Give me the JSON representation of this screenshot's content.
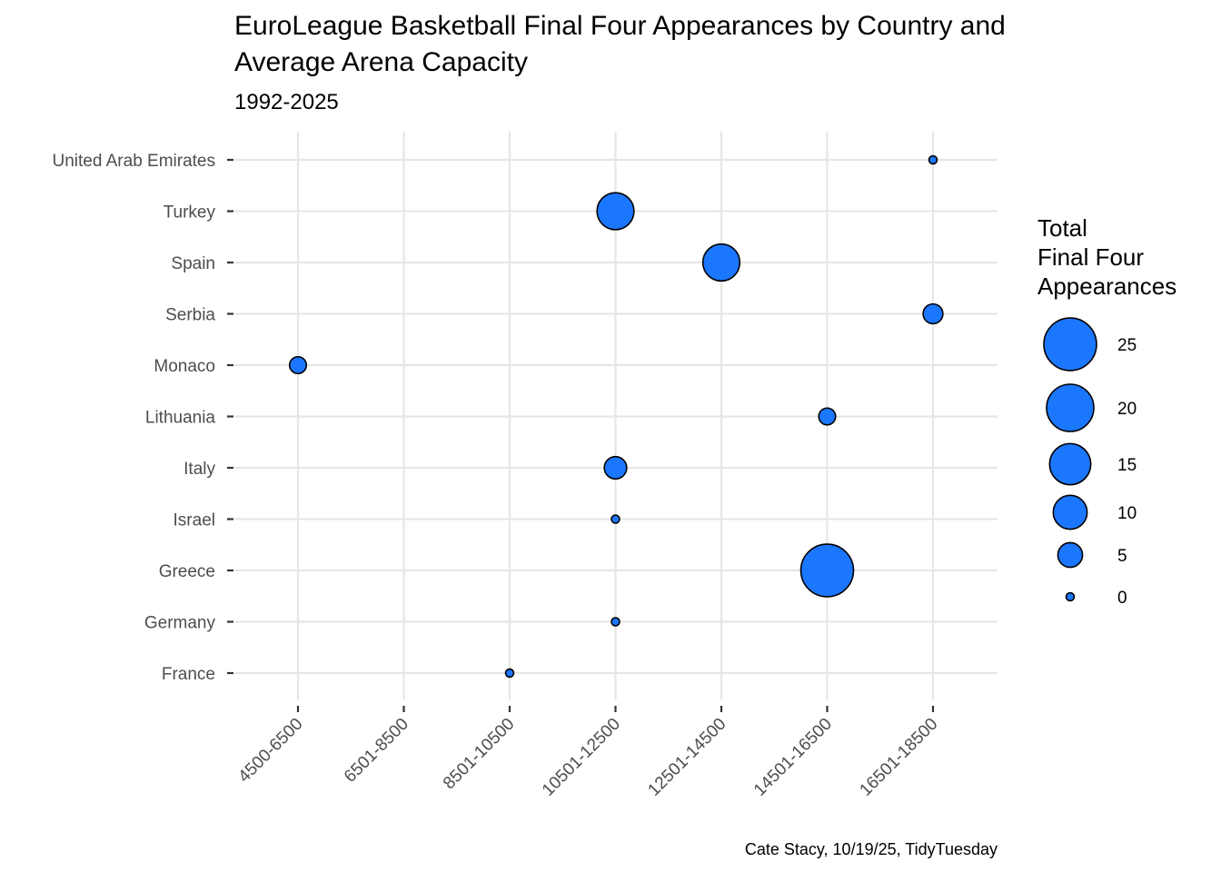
{
  "chart_data": {
    "type": "scatter",
    "title_lines": [
      "EuroLeague Basketball Final Four Appearances by Country and",
      "Average Arena Capacity"
    ],
    "subtitle": "1992-2025",
    "caption": "Cate Stacy, 10/19/25, TidyTuesday",
    "xlabel": "",
    "ylabel": "",
    "x_categories": [
      "4500-6500",
      "6501-8500",
      "8501-10500",
      "10501-12500",
      "12501-14500",
      "14501-16500",
      "16501-18500"
    ],
    "y_categories": [
      "France",
      "Germany",
      "Greece",
      "Israel",
      "Italy",
      "Lithuania",
      "Monaco",
      "Serbia",
      "Spain",
      "Turkey",
      "United Arab Emirates"
    ],
    "points": [
      {
        "country": "United Arab Emirates",
        "capacity": "16501-18500",
        "appearances": 0
      },
      {
        "country": "Turkey",
        "capacity": "10501-12500",
        "appearances": 12
      },
      {
        "country": "Spain",
        "capacity": "12501-14500",
        "appearances": 12
      },
      {
        "country": "Serbia",
        "capacity": "16501-18500",
        "appearances": 3
      },
      {
        "country": "Monaco",
        "capacity": "4500-6500",
        "appearances": 2
      },
      {
        "country": "Lithuania",
        "capacity": "14501-16500",
        "appearances": 2
      },
      {
        "country": "Italy",
        "capacity": "10501-12500",
        "appearances": 4
      },
      {
        "country": "Israel",
        "capacity": "10501-12500",
        "appearances": 0
      },
      {
        "country": "Greece",
        "capacity": "14501-16500",
        "appearances": 25
      },
      {
        "country": "Germany",
        "capacity": "10501-12500",
        "appearances": 0
      },
      {
        "country": "France",
        "capacity": "8501-10500",
        "appearances": 0
      }
    ],
    "legend": {
      "title_lines": [
        "Total",
        "Final Four",
        "Appearances"
      ],
      "breaks": [
        25,
        20,
        15,
        10,
        5,
        0
      ],
      "placement": "right"
    },
    "size_range": [
      0,
      25
    ],
    "grid": true,
    "colors": {
      "fill": "#1c77ff",
      "stroke": "#000000",
      "grid": "#e6e6e6"
    }
  }
}
